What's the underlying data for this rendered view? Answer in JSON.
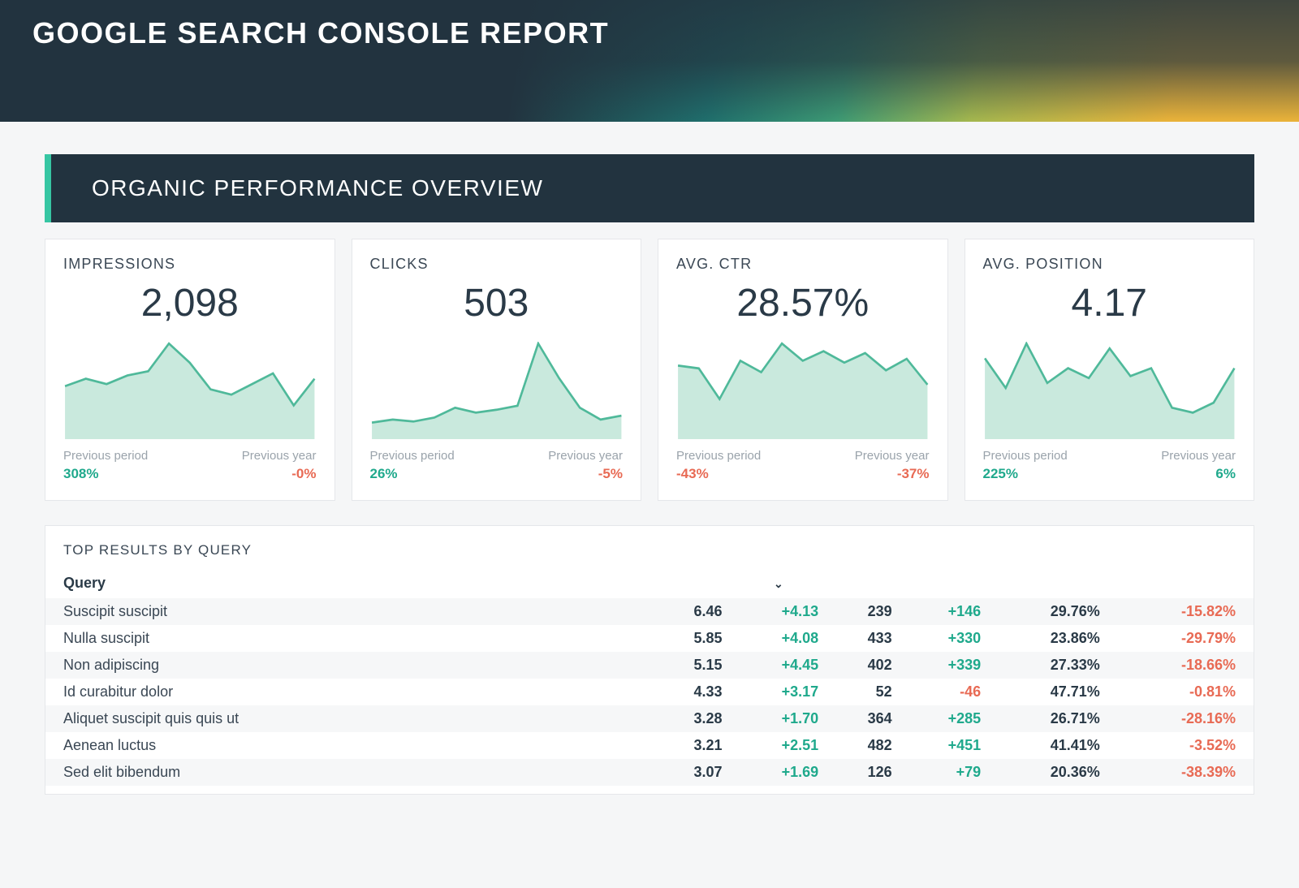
{
  "header": {
    "title": "GOOGLE SEARCH CONSOLE REPORT"
  },
  "section_title": "ORGANIC PERFORMANCE OVERVIEW",
  "colors": {
    "spark_stroke": "#4fb99a",
    "spark_fill": "#c9e9dd",
    "pos": "#1fa98c",
    "neg": "#e86a54",
    "card_bg": "#ffffff",
    "page_bg": "#f5f6f7",
    "bar_bg": "#22333f",
    "bar_accent": "#36c6a3"
  },
  "cards": [
    {
      "label": "IMPRESSIONS",
      "value": "2,098",
      "spark": [
        48,
        55,
        50,
        58,
        62,
        88,
        70,
        45,
        40,
        50,
        60,
        30,
        55
      ],
      "prev_period": {
        "label": "Previous period",
        "value": "308%",
        "sign": "pos"
      },
      "prev_year": {
        "label": "Previous year",
        "value": "-0%",
        "sign": "neg"
      }
    },
    {
      "label": "CLICKS",
      "value": "503",
      "spark": [
        15,
        18,
        16,
        20,
        30,
        25,
        28,
        32,
        95,
        60,
        30,
        18,
        22
      ],
      "prev_period": {
        "label": "Previous period",
        "value": "26%",
        "sign": "pos"
      },
      "prev_year": {
        "label": "Previous year",
        "value": "-5%",
        "sign": "neg"
      }
    },
    {
      "label": "AVG. CTR",
      "value": "28.57%",
      "spark": [
        75,
        72,
        40,
        80,
        68,
        98,
        80,
        90,
        78,
        88,
        70,
        82,
        55
      ],
      "prev_period": {
        "label": "Previous period",
        "value": "-43%",
        "sign": "neg"
      },
      "prev_year": {
        "label": "Previous year",
        "value": "-37%",
        "sign": "neg"
      }
    },
    {
      "label": "AVG. POSITION",
      "value": "4.17",
      "spark": [
        80,
        50,
        95,
        55,
        70,
        60,
        90,
        62,
        70,
        30,
        25,
        35,
        70
      ],
      "prev_period": {
        "label": "Previous period",
        "value": "225%",
        "sign": "pos"
      },
      "prev_year": {
        "label": "Previous year",
        "value": "6%",
        "sign": "pos"
      }
    }
  ],
  "table": {
    "title": "TOP RESULTS BY QUERY",
    "header": "Query",
    "sort_icon": "⌄",
    "rows": [
      {
        "query": "Suscipit suscipit",
        "v1": "6.46",
        "d1": "+4.13",
        "s1": "pos",
        "v2": "239",
        "d2": "+146",
        "s2": "pos",
        "v3": "29.76%",
        "d3": "-15.82%",
        "s3": "neg"
      },
      {
        "query": "Nulla suscipit",
        "v1": "5.85",
        "d1": "+4.08",
        "s1": "pos",
        "v2": "433",
        "d2": "+330",
        "s2": "pos",
        "v3": "23.86%",
        "d3": "-29.79%",
        "s3": "neg"
      },
      {
        "query": "Non adipiscing",
        "v1": "5.15",
        "d1": "+4.45",
        "s1": "pos",
        "v2": "402",
        "d2": "+339",
        "s2": "pos",
        "v3": "27.33%",
        "d3": "-18.66%",
        "s3": "neg"
      },
      {
        "query": "Id curabitur dolor",
        "v1": "4.33",
        "d1": "+3.17",
        "s1": "pos",
        "v2": "52",
        "d2": "-46",
        "s2": "neg",
        "v3": "47.71%",
        "d3": "-0.81%",
        "s3": "neg"
      },
      {
        "query": "Aliquet suscipit quis quis ut",
        "v1": "3.28",
        "d1": "+1.70",
        "s1": "pos",
        "v2": "364",
        "d2": "+285",
        "s2": "pos",
        "v3": "26.71%",
        "d3": "-28.16%",
        "s3": "neg"
      },
      {
        "query": "Aenean luctus",
        "v1": "3.21",
        "d1": "+2.51",
        "s1": "pos",
        "v2": "482",
        "d2": "+451",
        "s2": "pos",
        "v3": "41.41%",
        "d3": "-3.52%",
        "s3": "neg"
      },
      {
        "query": "Sed elit bibendum",
        "v1": "3.07",
        "d1": "+1.69",
        "s1": "pos",
        "v2": "126",
        "d2": "+79",
        "s2": "pos",
        "v3": "20.36%",
        "d3": "-38.39%",
        "s3": "neg"
      }
    ]
  }
}
